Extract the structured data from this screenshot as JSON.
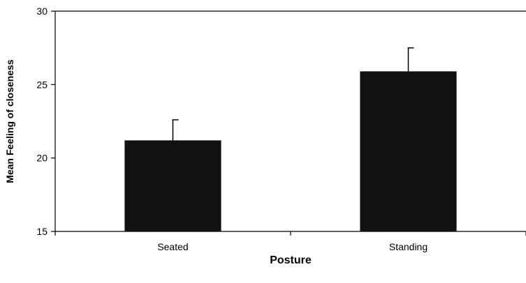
{
  "chart_data": {
    "type": "bar",
    "title": "",
    "xlabel": "Posture",
    "ylabel": "Mean Feeling of closeness",
    "categories": [
      "Seated",
      "Standing"
    ],
    "values": [
      21.2,
      25.9
    ],
    "error_upper": [
      22.6,
      27.5
    ],
    "ylim": [
      15,
      30
    ],
    "yticks": [
      "15",
      "20",
      "25",
      "30"
    ],
    "grid": false,
    "legend": "none",
    "bar_color": "#111111"
  }
}
